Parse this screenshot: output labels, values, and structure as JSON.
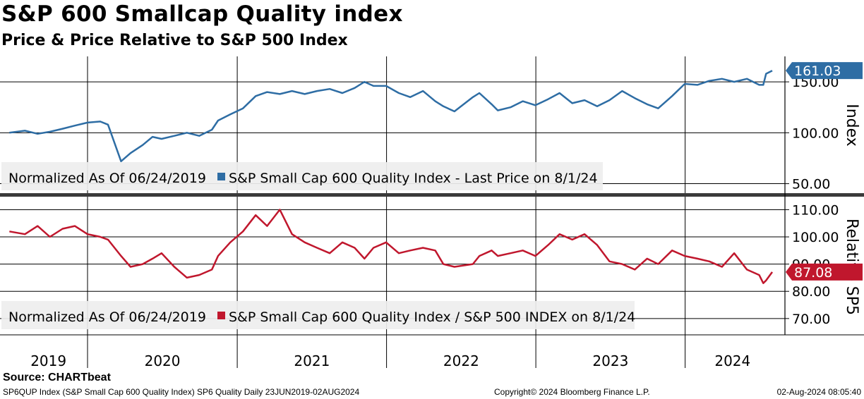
{
  "title": "S&P 600 Smallcap Quality index",
  "subtitle": "Price & Price Relative to S&P 500 Index",
  "source": "Source: CHARTbeat",
  "footer": {
    "left": "SP6QUP Index (S&P Small Cap 600 Quality Index) SP6 Quality  Daily 23JUN2019-02AUG2024",
    "center": "Copyright© 2024 Bloomberg Finance L.P.",
    "right": "02-Aug-2024 08:05:40"
  },
  "colors": {
    "price": "#2e6da4",
    "relative": "#c0172d",
    "grid": "#000000",
    "legend_bg": "#eeeeee"
  },
  "chart_data": [
    {
      "type": "line",
      "axis_title": "Index",
      "ylim": [
        40,
        175
      ],
      "yticks": [
        50,
        100,
        150
      ],
      "ytick_labels": [
        "50.00",
        "100.00",
        "150.00"
      ],
      "legend_prefix": "Normalized As Of 06/24/2019",
      "series": [
        {
          "name": "S&P Small Cap 600 Quality Index - Last Price on 8/1/24",
          "last_value_label": "161.03",
          "x": [
            "2019-06-24",
            "2019-08-01",
            "2019-09-01",
            "2019-10-01",
            "2019-11-01",
            "2019-12-01",
            "2020-01-01",
            "2020-02-01",
            "2020-02-20",
            "2020-03-23",
            "2020-04-15",
            "2020-05-15",
            "2020-06-08",
            "2020-06-30",
            "2020-07-31",
            "2020-08-31",
            "2020-09-30",
            "2020-10-31",
            "2020-11-15",
            "2020-12-15",
            "2021-01-15",
            "2021-02-15",
            "2021-03-15",
            "2021-04-15",
            "2021-05-15",
            "2021-06-15",
            "2021-07-15",
            "2021-08-15",
            "2021-09-15",
            "2021-10-15",
            "2021-11-08",
            "2021-11-30",
            "2021-12-31",
            "2022-01-31",
            "2022-02-28",
            "2022-03-31",
            "2022-04-30",
            "2022-05-20",
            "2022-06-16",
            "2022-07-31",
            "2022-08-16",
            "2022-09-15",
            "2022-09-30",
            "2022-10-31",
            "2022-11-30",
            "2022-12-31",
            "2023-01-31",
            "2023-02-28",
            "2023-03-31",
            "2023-04-30",
            "2023-05-31",
            "2023-06-30",
            "2023-07-31",
            "2023-08-31",
            "2023-09-30",
            "2023-10-27",
            "2023-11-30",
            "2023-12-31",
            "2024-01-31",
            "2024-02-29",
            "2024-03-31",
            "2024-04-30",
            "2024-05-31",
            "2024-06-30",
            "2024-07-10",
            "2024-07-17",
            "2024-08-01"
          ],
          "values": [
            100,
            102,
            99,
            101,
            104,
            107,
            110,
            111,
            108,
            72,
            80,
            88,
            96,
            94,
            97,
            100,
            97,
            103,
            112,
            118,
            124,
            136,
            140,
            138,
            141,
            138,
            141,
            143,
            139,
            144,
            150,
            146,
            146,
            139,
            135,
            141,
            131,
            126,
            121,
            135,
            139,
            128,
            122,
            125,
            131,
            127,
            133,
            139,
            129,
            132,
            126,
            132,
            141,
            134,
            128,
            124,
            136,
            148,
            147,
            151,
            153,
            150,
            153,
            147,
            147,
            158,
            161.03
          ]
        }
      ]
    },
    {
      "type": "line",
      "axis_title": "Relative SP5",
      "ylim": [
        64,
        114
      ],
      "yticks": [
        70,
        80,
        90,
        100,
        110
      ],
      "ytick_labels": [
        "70.00",
        "80.00",
        "90.00",
        "100.00",
        "110.00"
      ],
      "legend_prefix": "Normalized As Of 06/24/2019",
      "series": [
        {
          "name": "S&P Small Cap 600 Quality Index / S&P 500 INDEX on 8/1/24",
          "last_value_label": "87.08",
          "x": [
            "2019-06-24",
            "2019-08-01",
            "2019-09-01",
            "2019-10-01",
            "2019-11-01",
            "2019-12-01",
            "2020-01-01",
            "2020-02-01",
            "2020-02-20",
            "2020-03-23",
            "2020-04-15",
            "2020-05-15",
            "2020-06-08",
            "2020-06-30",
            "2020-07-31",
            "2020-08-31",
            "2020-09-30",
            "2020-10-31",
            "2020-11-15",
            "2020-12-15",
            "2021-01-15",
            "2021-02-15",
            "2021-03-15",
            "2021-04-15",
            "2021-05-15",
            "2021-06-15",
            "2021-07-15",
            "2021-08-15",
            "2021-09-15",
            "2021-10-15",
            "2021-11-08",
            "2021-11-30",
            "2021-12-31",
            "2022-01-31",
            "2022-02-28",
            "2022-03-31",
            "2022-04-30",
            "2022-05-20",
            "2022-06-16",
            "2022-07-31",
            "2022-08-16",
            "2022-09-15",
            "2022-09-30",
            "2022-10-31",
            "2022-11-30",
            "2022-12-31",
            "2023-01-31",
            "2023-02-28",
            "2023-03-31",
            "2023-04-30",
            "2023-05-31",
            "2023-06-30",
            "2023-07-31",
            "2023-08-31",
            "2023-09-30",
            "2023-10-27",
            "2023-11-30",
            "2023-12-31",
            "2024-01-31",
            "2024-02-29",
            "2024-03-31",
            "2024-04-30",
            "2024-05-31",
            "2024-06-30",
            "2024-07-10",
            "2024-07-17",
            "2024-08-01"
          ],
          "values": [
            102,
            101,
            104,
            100,
            103,
            104,
            101,
            100,
            99,
            93,
            89,
            90,
            92,
            94,
            89,
            85,
            86,
            88,
            93,
            98,
            102,
            108,
            104,
            110,
            101,
            98,
            96,
            94,
            98,
            96,
            92,
            96,
            98,
            94,
            95,
            96,
            95,
            90,
            89,
            90,
            93,
            95,
            93,
            94,
            95,
            93,
            97,
            101,
            99,
            101,
            97,
            91,
            90,
            88,
            92,
            90,
            95,
            93,
            92,
            91,
            89,
            94,
            88,
            86,
            83,
            84,
            87.08
          ]
        }
      ]
    }
  ],
  "x_axis": {
    "labels": [
      "2019",
      "2020",
      "2021",
      "2022",
      "2023",
      "2024"
    ]
  }
}
